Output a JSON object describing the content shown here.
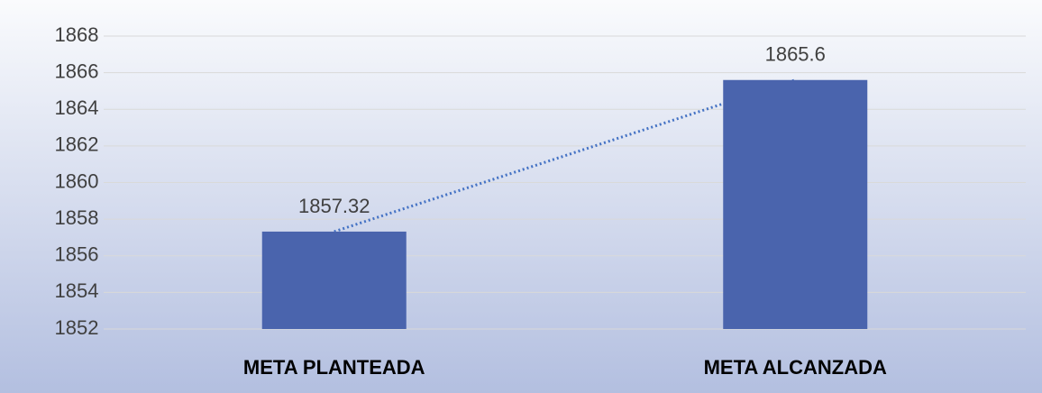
{
  "chart_data": {
    "type": "bar",
    "categories": [
      "META PLANTEADA",
      "META ALCANZADA"
    ],
    "values": [
      1857.32,
      1865.6
    ],
    "color": "#4a64ad",
    "ylim": [
      1852,
      1868
    ],
    "yticks": [
      1852,
      1854,
      1856,
      1858,
      1860,
      1862,
      1864,
      1866,
      1868
    ],
    "grid": true,
    "trendline": true
  }
}
